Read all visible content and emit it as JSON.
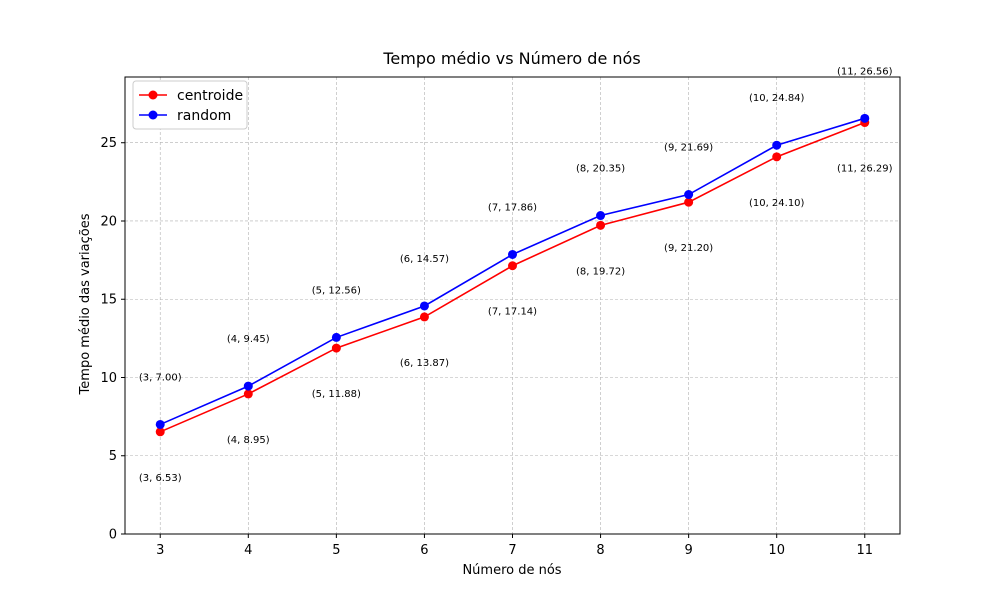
{
  "chart_data": {
    "type": "line",
    "title": "Tempo médio vs Número de nós",
    "xlabel": "Número de nós",
    "ylabel": "Tempo médio das variações",
    "x": [
      3,
      4,
      5,
      6,
      7,
      8,
      9,
      10,
      11
    ],
    "xlim": [
      2.6,
      11.4
    ],
    "ylim": [
      0,
      29.2
    ],
    "xticks": [
      3,
      4,
      5,
      6,
      7,
      8,
      9,
      10,
      11
    ],
    "yticks": [
      0,
      5,
      10,
      15,
      20,
      25
    ],
    "grid": true,
    "legend_position": "top-left",
    "series": [
      {
        "name": "centroide",
        "color": "#ff0000",
        "values": [
          6.53,
          8.95,
          11.88,
          13.87,
          17.14,
          19.72,
          21.2,
          24.1,
          26.29
        ],
        "labels": [
          "(3, 6.53)",
          "(4, 8.95)",
          "(5, 11.88)",
          "(6, 13.87)",
          "(7, 17.14)",
          "(8, 19.72)",
          "(9, 21.20)",
          "(10, 24.10)",
          "(11, 26.29)"
        ],
        "label_position": "below"
      },
      {
        "name": "random",
        "color": "#0000ff",
        "values": [
          7.0,
          9.45,
          12.56,
          14.57,
          17.86,
          20.35,
          21.69,
          24.84,
          26.56
        ],
        "labels": [
          "(3, 7.00)",
          "(4, 9.45)",
          "(5, 12.56)",
          "(6, 14.57)",
          "(7, 17.86)",
          "(8, 20.35)",
          "(9, 21.69)",
          "(10, 24.84)",
          "(11, 26.56)"
        ],
        "label_position": "above"
      }
    ]
  }
}
